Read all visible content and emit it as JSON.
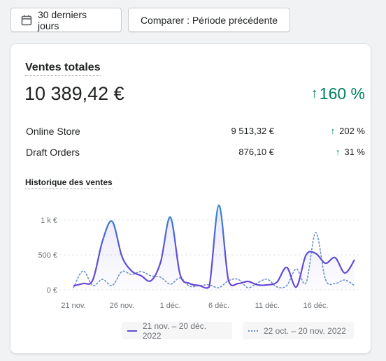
{
  "toolbar": {
    "date_range_label": "30 derniers jours",
    "compare_label": "Comparer : Période précédente"
  },
  "card": {
    "title": "Ventes totales",
    "total": "10 389,42 €",
    "total_change": "160 %",
    "rows": [
      {
        "name": "Online Store",
        "amount": "9 513,32 €",
        "change": "202 %"
      },
      {
        "name": "Draft Orders",
        "amount": "876,10 €",
        "change": "31 %"
      }
    ],
    "history_title": "Historique des ventes"
  },
  "colors": {
    "accent_green": "#008060",
    "current_series": "#5c4fd6",
    "previous_series": "#6b90c7"
  },
  "chart_data": {
    "type": "line",
    "ytick_labels": [
      "0 €",
      "500 €",
      "1 k €"
    ],
    "ytick_values": [
      0,
      500,
      1000
    ],
    "ylim": [
      0,
      1250
    ],
    "xtick_labels": [
      "21 nov.",
      "26 nov.",
      "1 déc.",
      "6 déc.",
      "11 déc.",
      "16 déc."
    ],
    "xtick_index": [
      0,
      5,
      10,
      15,
      20,
      25
    ],
    "grid": true,
    "legend_position": "bottom",
    "series": [
      {
        "name": "21 nov. – 20 déc. 2022",
        "style": "solid",
        "values": [
          55,
          90,
          140,
          700,
          980,
          480,
          270,
          200,
          130,
          400,
          1040,
          220,
          90,
          60,
          40,
          1210,
          130,
          90,
          120,
          70,
          70,
          110,
          320,
          40,
          500,
          520,
          380,
          460,
          240,
          430
        ]
      },
      {
        "name": "22 oct. – 20 nov. 2022",
        "style": "dotted",
        "values": [
          30,
          270,
          60,
          150,
          60,
          260,
          220,
          260,
          200,
          180,
          80,
          170,
          50,
          60,
          70,
          30,
          130,
          150,
          30,
          100,
          150,
          40,
          60,
          300,
          100,
          820,
          150,
          90,
          140,
          60
        ]
      }
    ]
  }
}
